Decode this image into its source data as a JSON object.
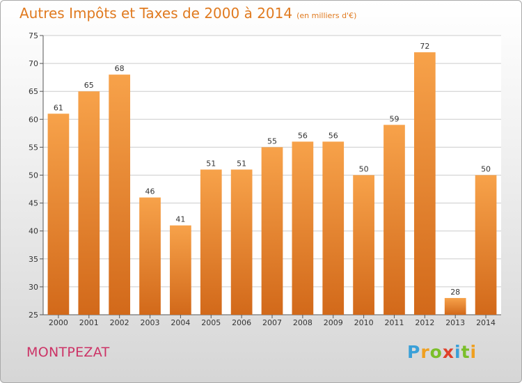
{
  "title": "Autres Impôts et Taxes de 2000 à 2014",
  "unit_note": "(en milliers d'€)",
  "place": "MONTPEZAT",
  "logo": {
    "letters": [
      "P",
      "r",
      "o",
      "x",
      "i",
      "t",
      "i"
    ],
    "colors": [
      "#3aa0d8",
      "#f0a020",
      "#7bbf2a",
      "#e0402a",
      "#3aa0d8",
      "#7bbf2a",
      "#f0a020"
    ]
  },
  "colors": {
    "bar_top": "#f7a24a",
    "bar_bottom": "#d2691a",
    "title": "#e07a1f",
    "place": "#cc3366",
    "grid": "#cccccc"
  },
  "chart_data": {
    "type": "bar",
    "title": "Autres Impôts et Taxes de 2000 à 2014",
    "xlabel": "",
    "ylabel": "",
    "categories": [
      "2000",
      "2001",
      "2002",
      "2003",
      "2004",
      "2005",
      "2006",
      "2007",
      "2008",
      "2009",
      "2010",
      "2011",
      "2012",
      "2013",
      "2014"
    ],
    "values": [
      61,
      65,
      68,
      46,
      41,
      51,
      51,
      55,
      56,
      56,
      50,
      59,
      72,
      28,
      50
    ],
    "ylim": [
      25,
      75
    ],
    "yticks": [
      25,
      30,
      35,
      40,
      45,
      50,
      55,
      60,
      65,
      70,
      75
    ],
    "grid": true
  }
}
